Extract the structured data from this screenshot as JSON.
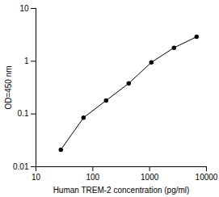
{
  "chart_data": {
    "type": "line",
    "x_label": "Human TREM-2 concentration (pg/ml)",
    "y_label": "OD=450 nm",
    "x": [
      27.4,
      68.6,
      171.5,
      428.7,
      1071.8,
      2679.5,
      6698.7
    ],
    "values": [
      0.021,
      0.085,
      0.18,
      0.38,
      0.95,
      1.8,
      2.9
    ],
    "color": "#000000",
    "marker": "circle",
    "line_style": "solid",
    "log": true,
    "grid": false,
    "xlim": [
      10,
      10000
    ],
    "xticks": [
      10,
      100,
      1000,
      10000
    ],
    "ylim": [
      0.01,
      10
    ],
    "yticks": [
      0.01,
      0.1,
      1,
      10
    ]
  }
}
